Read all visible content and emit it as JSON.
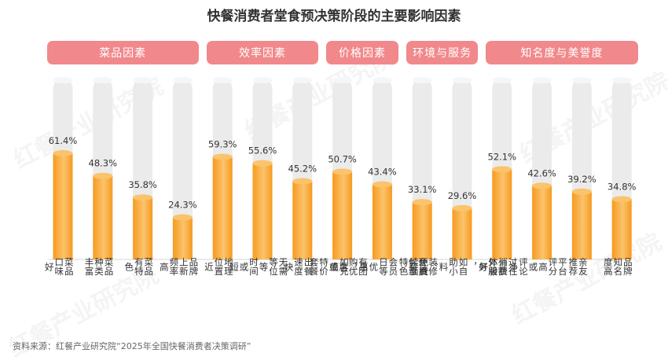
{
  "title": "快餐消费者堂食预决策阶段的主要影响因素",
  "source": "资料来源：红餐产业研究院“2025年全国快餐消费者决策调研”",
  "watermark": "红餐产业研究院",
  "colors": {
    "bar": "#f79a1f",
    "bar_light": "#fbc36c",
    "track": "#ebebeb",
    "pill": "#f1888b"
  },
  "groups": [
    {
      "label": "菜品因素",
      "count": 4
    },
    {
      "label": "效率因素",
      "count": 3
    },
    {
      "label": "价格因素",
      "count": 2
    },
    {
      "label": "环境与服务",
      "count": 2
    },
    {
      "label": "知名度与美誉度",
      "count": 4
    }
  ],
  "chart_data": {
    "type": "bar",
    "title": "快餐消费者堂食预决策阶段的主要影响因素",
    "ylim": [
      0,
      100
    ],
    "categories": [
      [
        "菜品",
        "口味",
        "好"
      ],
      [
        "菜品",
        "种类",
        "丰富"
      ],
      [
        "菜品",
        "有特",
        "色"
      ],
      [
        "品牌",
        "上新",
        "频率",
        "高"
      ],
      [
        "地理",
        "位置",
        "近"
      ],
      [
        "无需",
        "等位",
        "等",
        "时间",
        "或",
        "短"
      ],
      [
        "出餐",
        "速度",
        "快"
      ],
      [
        "有团",
        "购优",
        "惠",
        "或",
        "特价",
        "套餐"
      ],
      [
        "会员",
        "优惠",
        "、",
        "会员",
        "日等",
        "优",
        "惠",
        "，",
        "如充",
        "值"
      ],
      [
        "装修",
        "环境",
        "有",
        "特色"
      ],
      [
        "有额",
        "外服",
        "务",
        "，",
        "如自",
        "助小",
        "料",
        "、",
        "免费",
        "续面"
      ],
      [
        "过往",
        "消费",
        "体验",
        "好"
      ],
      [
        "平台",
        "评分",
        "高",
        "或",
        "评论",
        "多"
      ],
      [
        "亲友",
        "推荐"
      ],
      [
        "品牌",
        "知名",
        "度高"
      ]
    ],
    "values": [
      61.4,
      48.3,
      35.8,
      24.3,
      59.3,
      55.6,
      45.2,
      50.7,
      43.4,
      33.1,
      29.6,
      52.1,
      42.6,
      39.2,
      34.8
    ],
    "labels": [
      "61.4%",
      "48.3%",
      "35.8%",
      "24.3%",
      "59.3%",
      "55.6%",
      "45.2%",
      "50.7%",
      "43.4%",
      "33.1%",
      "29.6%",
      "52.1%",
      "42.6%",
      "39.2%",
      "34.8%"
    ]
  }
}
